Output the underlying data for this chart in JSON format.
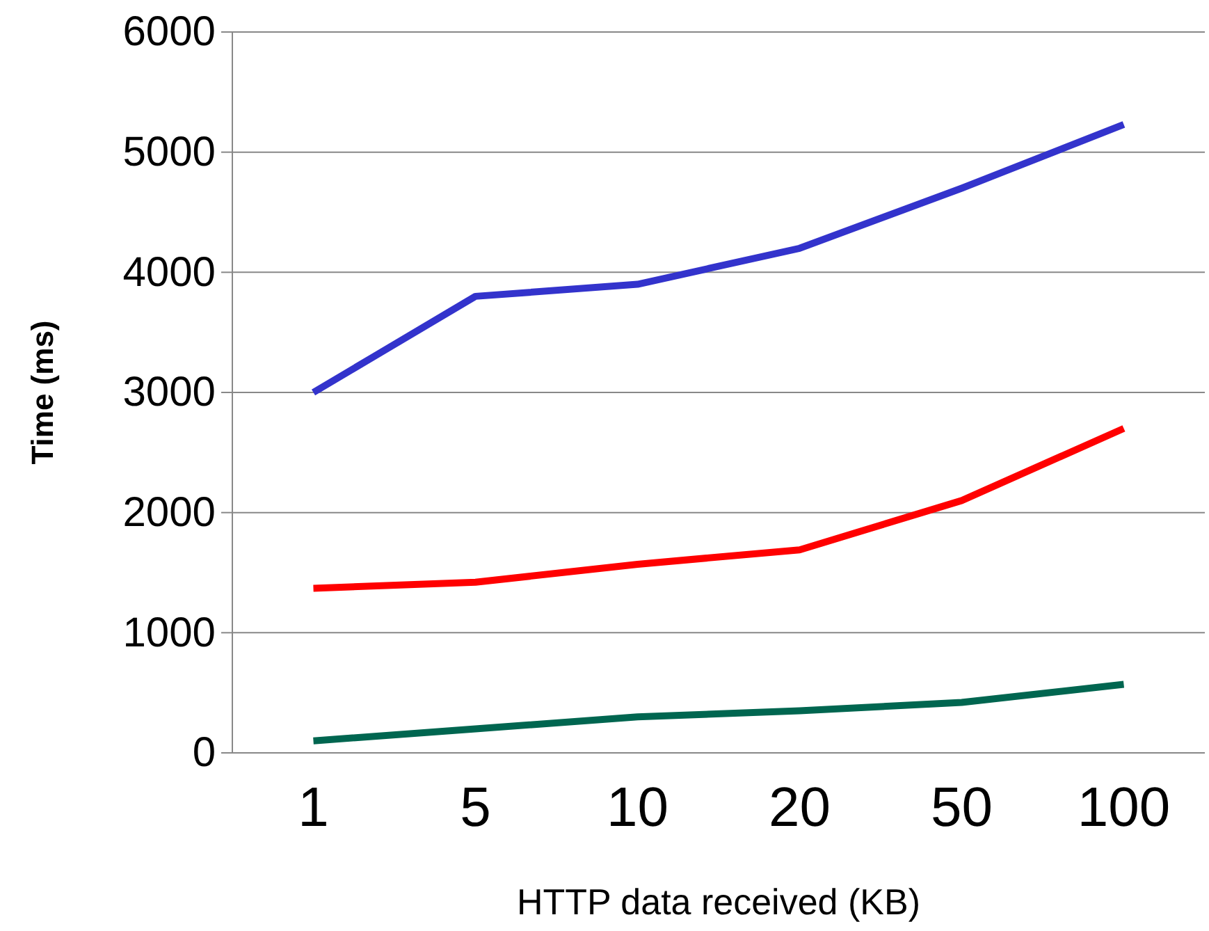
{
  "chart_data": {
    "type": "line",
    "xlabel": "HTTP data received (KB)",
    "ylabel": "Time (ms)",
    "categories": [
      "1",
      "5",
      "10",
      "20",
      "50",
      "100"
    ],
    "series": [
      {
        "color": "#3333cc",
        "values": [
          3000,
          3800,
          3900,
          4200,
          4700,
          5230
        ]
      },
      {
        "color": "#ff0000",
        "values": [
          1370,
          1420,
          1570,
          1690,
          2100,
          2700
        ]
      },
      {
        "color": "#006650",
        "values": [
          100,
          200,
          300,
          350,
          420,
          570
        ]
      }
    ],
    "ylim": [
      0,
      6000
    ],
    "yticks": [
      0,
      1000,
      2000,
      3000,
      4000,
      5000,
      6000
    ],
    "grid": "y",
    "marker": "none",
    "line_style": "solid"
  }
}
